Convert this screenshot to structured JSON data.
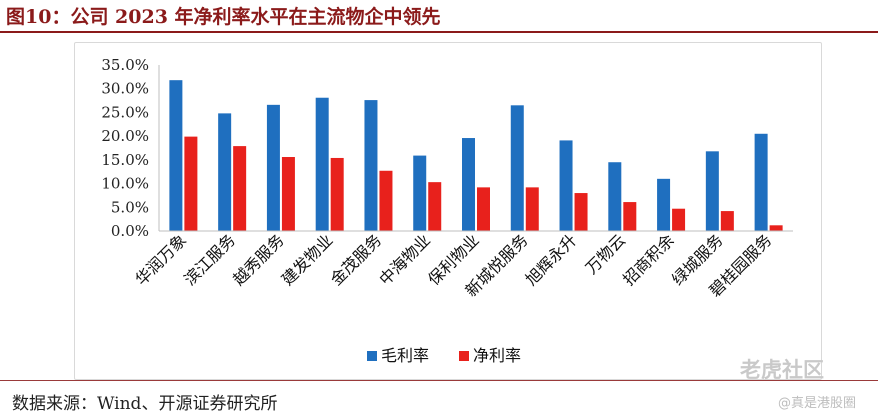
{
  "header": {
    "title": "图10：公司 2023 年净利率水平在主流物企中领先"
  },
  "footer": {
    "source": "数据来源：Wind、开源证券研究所"
  },
  "watermark": {
    "brand": "老虎社区",
    "sub": "@真是港股圈"
  },
  "chart_data": {
    "type": "bar",
    "title": "",
    "xlabel": "",
    "ylabel": "",
    "ylim": [
      0,
      35
    ],
    "yticks": [
      "0.0%",
      "5.0%",
      "10.0%",
      "15.0%",
      "20.0%",
      "25.0%",
      "30.0%",
      "35.0%"
    ],
    "grid": false,
    "legend_position": "bottom",
    "categories": [
      "华润万象",
      "滨江服务",
      "越秀服务",
      "建发物业",
      "金茂服务",
      "中海物业",
      "保利物业",
      "新城悦服务",
      "旭辉永升",
      "万物云",
      "招商积余",
      "绿城服务",
      "碧桂园服务"
    ],
    "series": [
      {
        "name": "毛利率",
        "color": "#1f6fbf",
        "values": [
          31.8,
          24.8,
          26.6,
          28.1,
          27.6,
          15.9,
          19.6,
          26.5,
          19.1,
          14.5,
          11.0,
          16.8,
          20.5
        ]
      },
      {
        "name": "净利率",
        "color": "#e8211c",
        "values": [
          19.9,
          17.9,
          15.6,
          15.4,
          12.7,
          10.3,
          9.2,
          9.2,
          8.0,
          6.1,
          4.7,
          4.2,
          1.2
        ]
      }
    ]
  }
}
